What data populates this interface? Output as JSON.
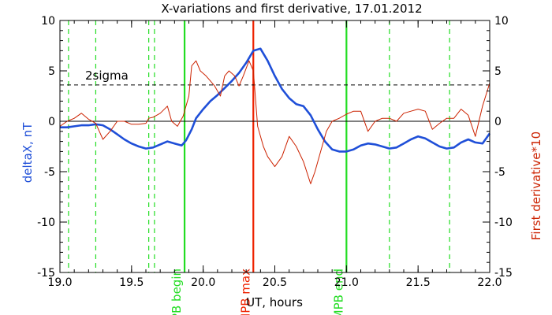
{
  "chart_data": {
    "type": "line",
    "title": "X-variations and first derivative, 17.01.2012",
    "xlabel": "UT, hours",
    "ylabel_left": "deltaX, nT",
    "ylabel_right": "First derivative*10",
    "xlim": [
      19.0,
      22.0
    ],
    "ylim_left": [
      -15,
      10
    ],
    "ylim_right": [
      -15,
      10
    ],
    "x_ticks": [
      "19.0",
      "19.5",
      "20.0",
      "20.5",
      "21.0",
      "21.5",
      "22.0"
    ],
    "y_ticks": [
      "-15",
      "-10",
      "-5",
      "0",
      "5",
      "10"
    ],
    "sigma_label": "2sigma",
    "sigma_level": 3.6,
    "zero_level": 0,
    "colors": {
      "deltaX": "#1f4fd8",
      "derivative": "#cc2200",
      "mpb": "#22dd22",
      "mpb_max": "#ee2200",
      "axis": "#000000"
    },
    "series": [
      {
        "name": "deltaX, nT",
        "axis": "left",
        "x": [
          19.0,
          19.05,
          19.1,
          19.15,
          19.2,
          19.25,
          19.3,
          19.35,
          19.4,
          19.45,
          19.5,
          19.55,
          19.6,
          19.65,
          19.7,
          19.75,
          19.8,
          19.85,
          19.88,
          19.92,
          19.95,
          20.0,
          20.05,
          20.1,
          20.15,
          20.2,
          20.25,
          20.3,
          20.35,
          20.4,
          20.45,
          20.5,
          20.55,
          20.6,
          20.65,
          20.7,
          20.75,
          20.8,
          20.85,
          20.9,
          20.95,
          21.0,
          21.05,
          21.1,
          21.15,
          21.2,
          21.25,
          21.3,
          21.35,
          21.4,
          21.45,
          21.5,
          21.55,
          21.6,
          21.65,
          21.7,
          21.75,
          21.8,
          21.85,
          21.9,
          21.95,
          22.0
        ],
        "values": [
          -0.6,
          -0.6,
          -0.5,
          -0.4,
          -0.4,
          -0.3,
          -0.4,
          -0.8,
          -1.3,
          -1.8,
          -2.2,
          -2.5,
          -2.7,
          -2.6,
          -2.3,
          -2.0,
          -2.2,
          -2.4,
          -1.9,
          -0.8,
          0.3,
          1.2,
          2.0,
          2.6,
          3.3,
          4.0,
          4.8,
          5.8,
          7.0,
          7.2,
          6.0,
          4.5,
          3.2,
          2.3,
          1.7,
          1.5,
          0.6,
          -0.8,
          -2.0,
          -2.8,
          -3.0,
          -3.0,
          -2.8,
          -2.4,
          -2.2,
          -2.3,
          -2.5,
          -2.7,
          -2.6,
          -2.2,
          -1.8,
          -1.5,
          -1.7,
          -2.1,
          -2.5,
          -2.7,
          -2.6,
          -2.1,
          -1.8,
          -2.1,
          -2.2,
          -1.2
        ]
      },
      {
        "name": "First derivative*10",
        "axis": "right",
        "x": [
          19.0,
          19.05,
          19.1,
          19.15,
          19.2,
          19.25,
          19.3,
          19.35,
          19.4,
          19.45,
          19.5,
          19.55,
          19.6,
          19.62,
          19.65,
          19.7,
          19.75,
          19.78,
          19.82,
          19.86,
          19.9,
          19.92,
          19.95,
          19.98,
          20.02,
          20.05,
          20.08,
          20.12,
          20.15,
          20.18,
          20.22,
          20.25,
          20.28,
          20.32,
          20.35,
          20.38,
          20.42,
          20.45,
          20.5,
          20.55,
          20.6,
          20.65,
          20.7,
          20.75,
          20.78,
          20.82,
          20.86,
          20.9,
          20.95,
          21.0,
          21.05,
          21.1,
          21.15,
          21.2,
          21.25,
          21.3,
          21.35,
          21.4,
          21.45,
          21.5,
          21.55,
          21.6,
          21.65,
          21.7,
          21.75,
          21.8,
          21.85,
          21.9,
          21.95,
          22.0
        ],
        "values": [
          -0.5,
          0.0,
          0.3,
          0.8,
          0.2,
          -0.2,
          -1.8,
          -1.0,
          0.0,
          0.0,
          -0.3,
          -0.3,
          -0.2,
          0.3,
          0.4,
          0.8,
          1.5,
          0.0,
          -0.5,
          0.5,
          2.5,
          5.5,
          6.0,
          5.0,
          4.5,
          4.0,
          3.5,
          2.5,
          4.5,
          5.0,
          4.5,
          3.5,
          4.5,
          6.0,
          5.0,
          -0.5,
          -2.5,
          -3.5,
          -4.5,
          -3.5,
          -1.5,
          -2.5,
          -4.0,
          -6.2,
          -5.0,
          -3.0,
          -1.0,
          0.0,
          0.3,
          0.7,
          1.0,
          1.0,
          -1.0,
          0.0,
          0.3,
          0.3,
          0.0,
          0.8,
          1.0,
          1.2,
          1.0,
          -0.8,
          -0.2,
          0.3,
          0.3,
          1.2,
          0.6,
          -1.5,
          1.5,
          3.8
        ]
      }
    ],
    "vlines": [
      {
        "x": 19.06,
        "style": "dashed",
        "color": "#22dd22",
        "label": ""
      },
      {
        "x": 19.25,
        "style": "dashed",
        "color": "#22dd22",
        "label": ""
      },
      {
        "x": 19.62,
        "style": "dashed",
        "color": "#22dd22",
        "label": ""
      },
      {
        "x": 19.66,
        "style": "dashed",
        "color": "#22dd22",
        "label": ""
      },
      {
        "x": 19.87,
        "style": "solid",
        "color": "#22dd22",
        "label": "MPB begin"
      },
      {
        "x": 20.35,
        "style": "solid",
        "color": "#ee2200",
        "label": "MPB max"
      },
      {
        "x": 21.0,
        "style": "solid",
        "color": "#22dd22",
        "label": "MPB end"
      },
      {
        "x": 21.3,
        "style": "dashed",
        "color": "#22dd22",
        "label": ""
      },
      {
        "x": 21.72,
        "style": "dashed",
        "color": "#22dd22",
        "label": ""
      }
    ]
  }
}
